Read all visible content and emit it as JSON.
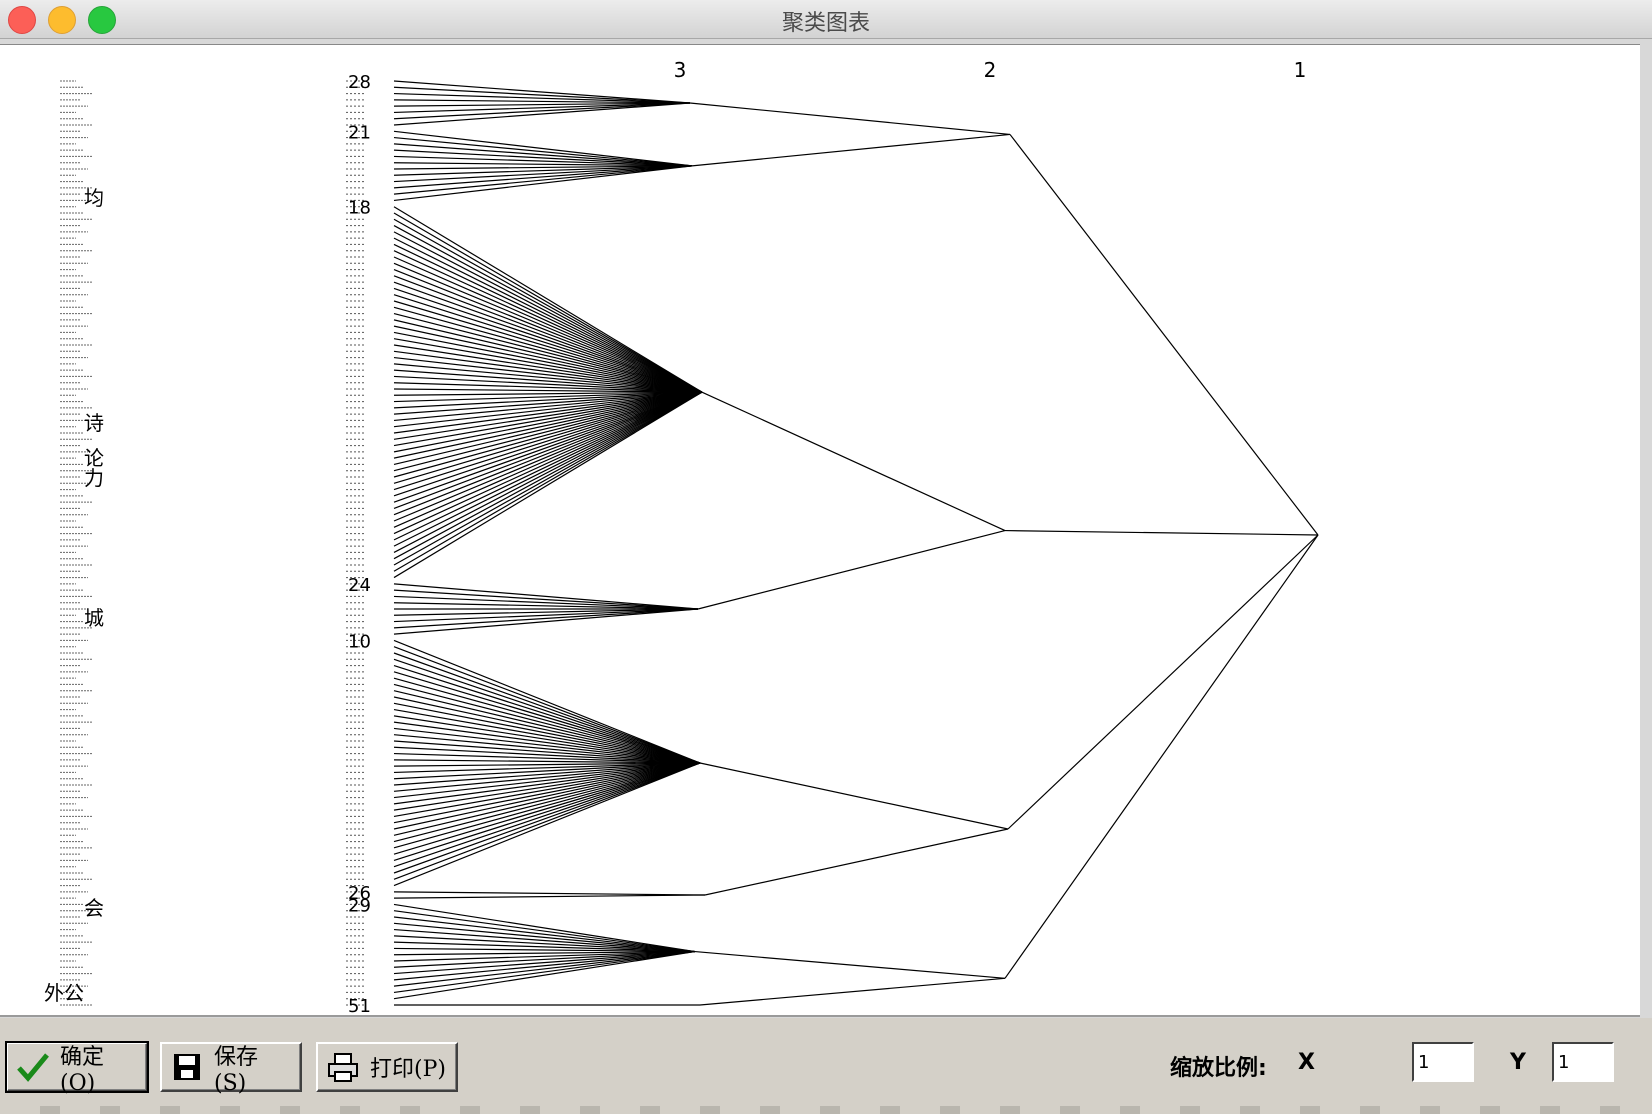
{
  "window": {
    "title": "聚类图表"
  },
  "chart_data": {
    "type": "dendrogram",
    "level_labels": [
      "3",
      "2",
      "1"
    ],
    "first_leaf_number_labels": [
      "28",
      "21",
      "18",
      "24",
      "10",
      "26",
      "29",
      "51"
    ],
    "name_fragments": [
      "均",
      "城",
      "会",
      "外公",
      "论",
      "诗",
      "力"
    ],
    "groups": [
      {
        "level": 3,
        "leaf_count": 8
      },
      {
        "level": 3,
        "leaf_count": 12
      },
      {
        "level": 3,
        "leaf_count": 60
      },
      {
        "level": 3,
        "leaf_count": 9
      },
      {
        "level": 3,
        "leaf_count": 40
      },
      {
        "level": 3,
        "leaf_count": 2
      },
      {
        "level": 3,
        "leaf_count": 16
      },
      {
        "level": 3,
        "leaf_count": 1
      }
    ]
  },
  "toolbar": {
    "ok_label": "确定(O)",
    "save_label": "保存(S)",
    "print_label": "打印(P)",
    "zoom_label": "缩放比例:",
    "x_label": "X",
    "y_label": "Y",
    "x_value": "1",
    "y_value": "1"
  }
}
